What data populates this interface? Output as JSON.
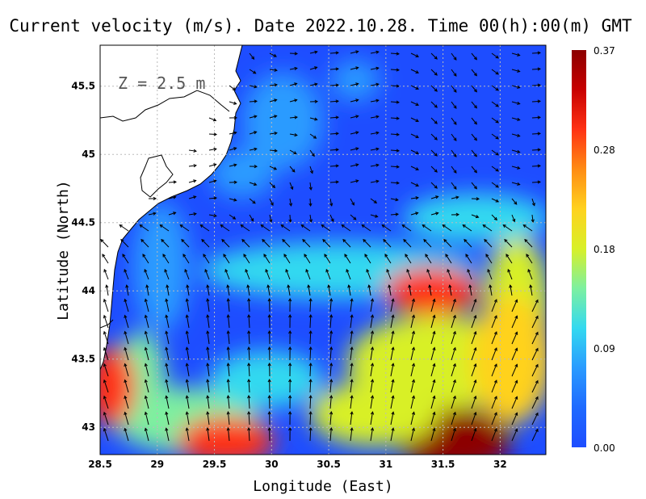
{
  "title": "Current velocity (m/s). Date 2022.10.28. Time 00(h):00(m) GMT",
  "depth_label": "Z = 2.5 m",
  "xlabel": "Longitude (East)",
  "ylabel": "Latitude (North)",
  "x_ticks": [
    "28.5",
    "29",
    "29.5",
    "30",
    "30.5",
    "31",
    "31.5",
    "32"
  ],
  "y_ticks": [
    "43",
    "43.5",
    "44",
    "44.5",
    "45",
    "45.5"
  ],
  "colorbar": {
    "labels": [
      "0.37",
      "0.28",
      "0.18",
      "0.09",
      "0.00"
    ],
    "min": 0.0,
    "max": 0.37,
    "colors": [
      "#1e4dff",
      "#1e6aff",
      "#2a9bff",
      "#33d9f0",
      "#7df0a0",
      "#d8f028",
      "#ffd21e",
      "#ff8c14",
      "#ff3214",
      "#c80000",
      "#8c0000"
    ]
  },
  "chart_data": {
    "type": "heatmap",
    "title": "Current velocity (m/s). Date 2022.10.28. Time 00(h):00(m) GMT",
    "xlabel": "Longitude (East)",
    "ylabel": "Latitude (North)",
    "xlim": [
      28.5,
      32.4
    ],
    "ylim": [
      42.8,
      45.8
    ],
    "x_ticks": [
      28.5,
      29,
      29.5,
      30,
      30.5,
      31,
      31.5,
      32
    ],
    "y_ticks": [
      43,
      43.5,
      44,
      44.5,
      45,
      45.5
    ],
    "value_range": [
      0.0,
      0.37
    ],
    "grid": true,
    "colorbar_ticks": [
      0.0,
      0.09,
      0.18,
      0.28,
      0.37
    ],
    "speed_features": [
      {
        "lon": 31.6,
        "lat": 42.9,
        "speed": 0.37
      },
      {
        "lon": 31.4,
        "lat": 44.0,
        "speed": 0.3
      },
      {
        "lon": 28.6,
        "lat": 43.3,
        "speed": 0.3
      },
      {
        "lon": 29.6,
        "lat": 42.9,
        "speed": 0.28
      },
      {
        "lon": 32.1,
        "lat": 43.5,
        "speed": 0.22
      },
      {
        "lon": 30.9,
        "lat": 43.1,
        "speed": 0.18
      }
    ]
  }
}
